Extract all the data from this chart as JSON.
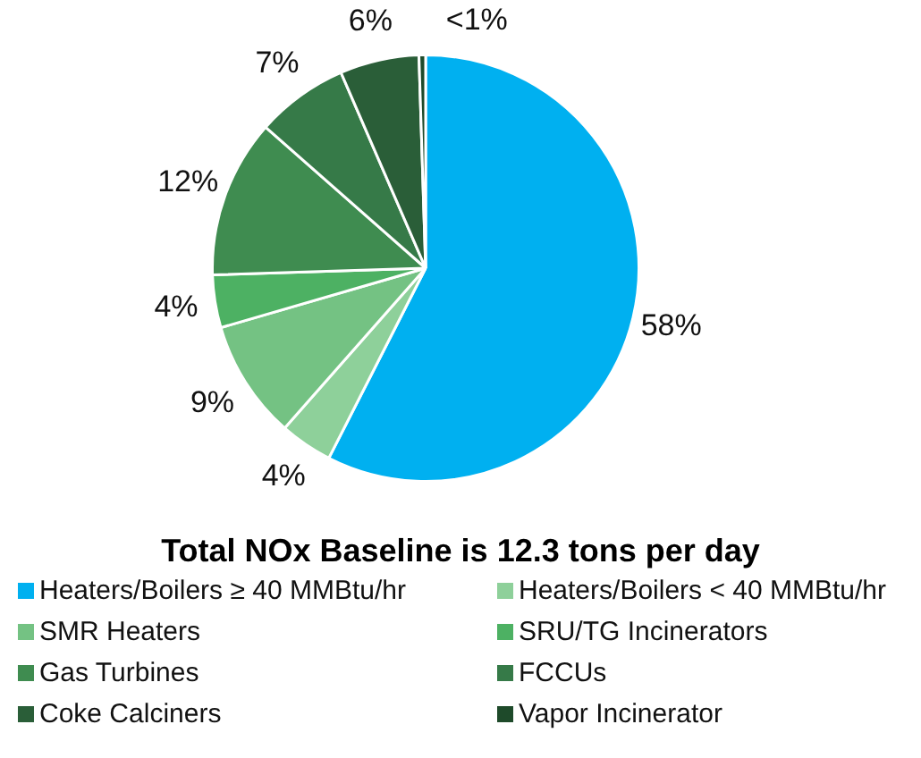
{
  "chart_data": {
    "type": "pie",
    "title": "Total NOx Baseline is 12.3 tons per day",
    "categories": [
      "Heaters/Boilers ≥ 40 MMBtu/hr",
      "Heaters/Boilers < 40 MMBtu/hr",
      "SMR Heaters",
      "SRU/TG Incinerators",
      "Gas Turbines",
      "FCCUs",
      "Coke Calciners",
      "Vapor Incinerator"
    ],
    "values": [
      57.5,
      4,
      9,
      4,
      12,
      7,
      6,
      0.5
    ],
    "value_labels": [
      "58%",
      "4%",
      "9%",
      "4%",
      "12%",
      "7%",
      "6%",
      "<1%"
    ],
    "colors": [
      "#00b0f0",
      "#8ed09a",
      "#74c283",
      "#4db163",
      "#3f8c50",
      "#367a48",
      "#2a5e38",
      "#1e4a2a"
    ],
    "legend": "bottom"
  }
}
